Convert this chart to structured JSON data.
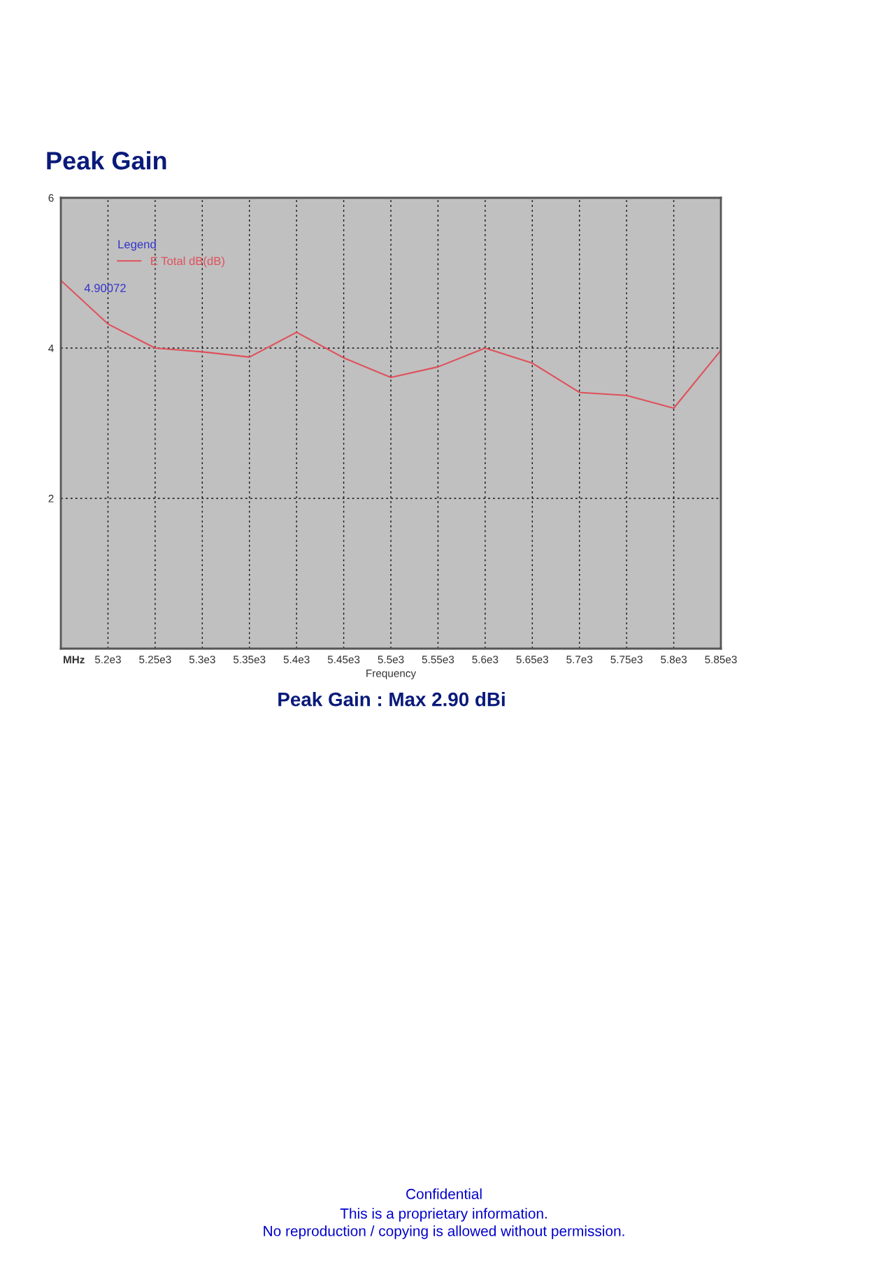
{
  "chart_data": {
    "type": "line",
    "title": "Peak Gain",
    "xlabel": "Frequency",
    "legend_title": "Legend",
    "x": [
      5150,
      5200,
      5250,
      5300,
      5350,
      5400,
      5450,
      5500,
      5550,
      5600,
      5650,
      5700,
      5750,
      5800,
      5850
    ],
    "series": [
      {
        "name": "E Total dB(dB)",
        "color": "#e0505a",
        "values": [
          4.90072,
          4.32,
          4.0,
          3.95,
          3.88,
          4.21,
          3.87,
          3.61,
          3.75,
          4.0,
          3.8,
          3.41,
          3.37,
          3.2,
          3.97
        ]
      }
    ],
    "xlim": [
      5150,
      5850
    ],
    "xticks": [
      {
        "value": 5200,
        "label": "5.2e3"
      },
      {
        "value": 5250,
        "label": "5.25e3"
      },
      {
        "value": 5300,
        "label": "5.3e3"
      },
      {
        "value": 5350,
        "label": "5.35e3"
      },
      {
        "value": 5400,
        "label": "5.4e3"
      },
      {
        "value": 5450,
        "label": "5.45e3"
      },
      {
        "value": 5500,
        "label": "5.5e3"
      },
      {
        "value": 5550,
        "label": "5.55e3"
      },
      {
        "value": 5600,
        "label": "5.6e3"
      },
      {
        "value": 5650,
        "label": "5.65e3"
      },
      {
        "value": 5700,
        "label": "5.7e3"
      },
      {
        "value": 5750,
        "label": "5.75e3"
      },
      {
        "value": 5800,
        "label": "5.8e3"
      },
      {
        "value": 5850,
        "label": "5.85e3"
      }
    ],
    "ylim": [
      0,
      6
    ],
    "yticks": [
      2,
      4,
      6
    ],
    "grid": true,
    "legend": "top left",
    "line_style": "solid",
    "annotations": [
      {
        "text": "4.90072",
        "x": 5150,
        "y": 4.90072
      },
      "MHz",
      "Peak Gain : Max 2.90 dBi",
      "Confidential",
      "This is a proprietary information.",
      "No reproduction / copying is allowed without permission."
    ]
  }
}
